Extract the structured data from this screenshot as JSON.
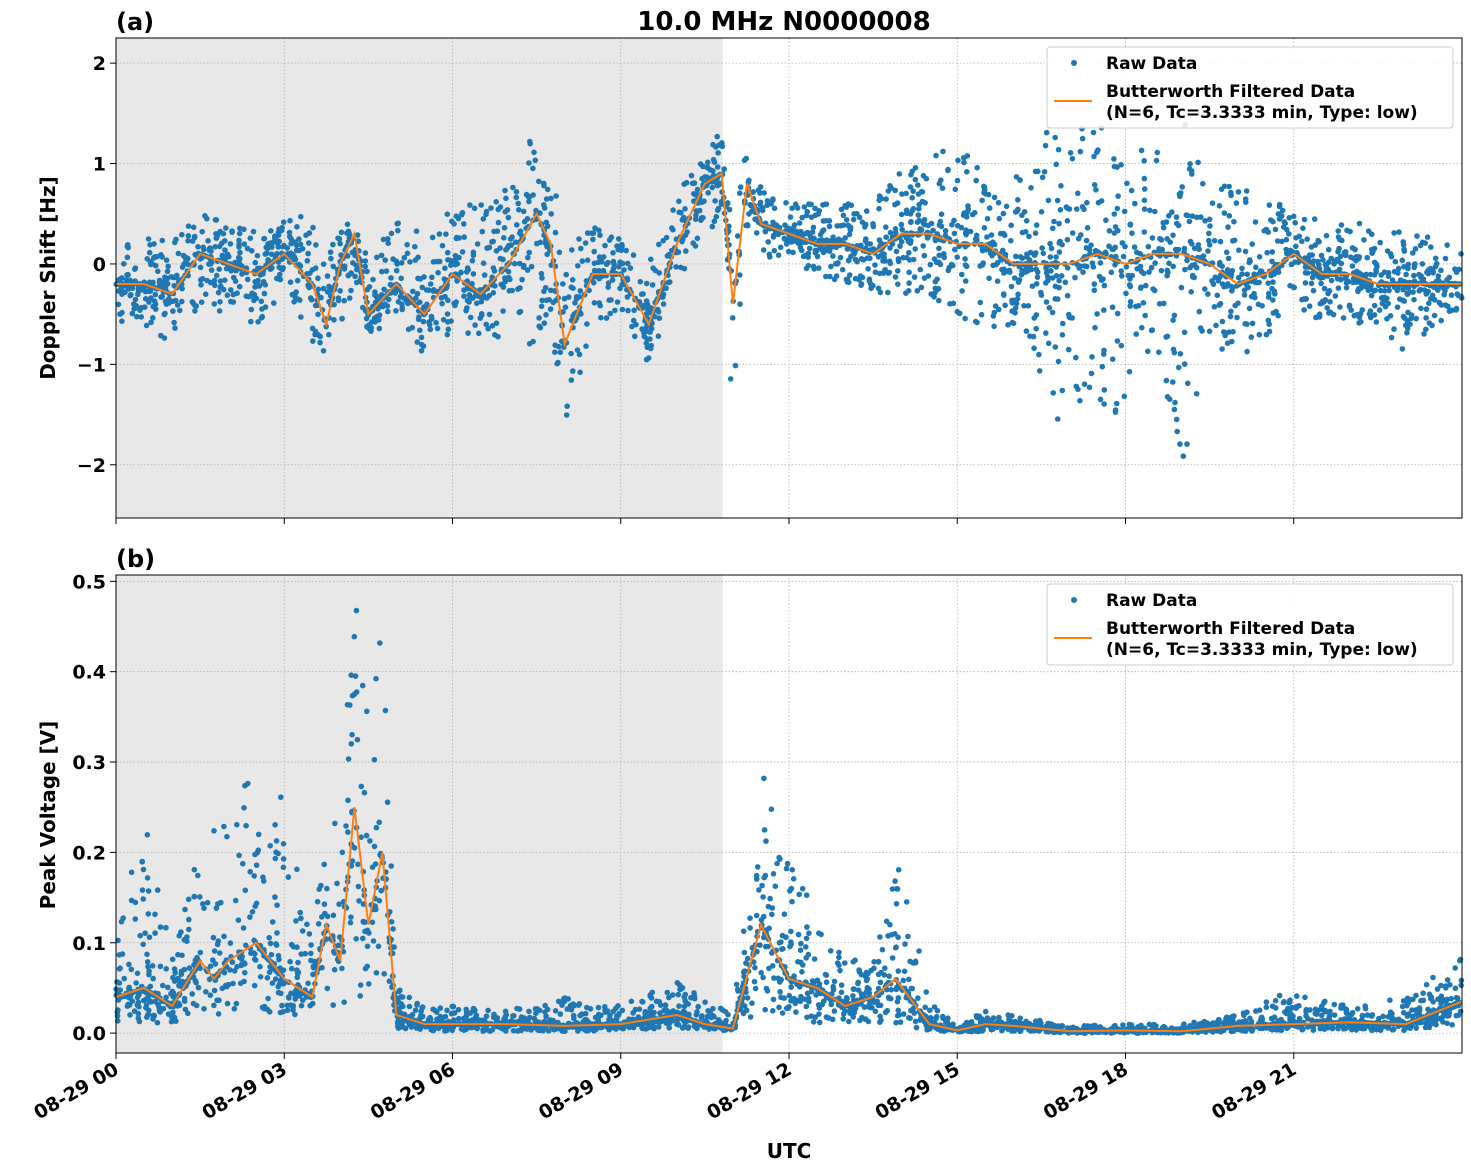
{
  "title": "10.0 MHz N0000008",
  "x_label": "UTC",
  "x_ticks": [
    "08-29 00",
    "08-29 03",
    "08-29 06",
    "08-29 09",
    "08-29 12",
    "08-29 15",
    "08-29 18",
    "08-29 21"
  ],
  "x_range": [
    "08-29 00:00",
    "08-30 00:00"
  ],
  "shaded_span": {
    "start": "08-29 00:00",
    "end": "08-29 10:49",
    "color": "#e8e8e8"
  },
  "colors": {
    "raw": "#1f77b4",
    "filtered": "#ff7f0e"
  },
  "legend": {
    "raw": "Raw Data",
    "filtered_line1": "Butterworth Filtered Data",
    "filtered_line2": "(N=6, Tc=3.3333 min, Type: low)",
    "position": "top-right"
  },
  "chart_data": [
    {
      "type": "scatter+line",
      "panel_label": "(a)",
      "ylabel": "Doppler Shift [Hz]",
      "ylim": [
        -2.53,
        2.25
      ],
      "y_ticks": [
        2,
        1,
        0,
        -1,
        -2
      ],
      "y_tick_labels": [
        "2",
        "1",
        "0",
        "−1",
        "−2"
      ],
      "grid": true,
      "series_columns": [
        "time",
        "filtered",
        "raw_min",
        "raw_max"
      ],
      "points": [
        [
          "08-29 00:00",
          -0.2,
          -0.6,
          0.3
        ],
        [
          "08-29 00:30",
          -0.2,
          -0.6,
          0.3
        ],
        [
          "08-29 01:00",
          -0.3,
          -0.8,
          0.2
        ],
        [
          "08-29 01:30",
          0.1,
          -0.4,
          0.55
        ],
        [
          "08-29 02:00",
          0.0,
          -0.5,
          0.45
        ],
        [
          "08-29 02:30",
          -0.1,
          -0.6,
          0.35
        ],
        [
          "08-29 03:00",
          0.1,
          -0.3,
          0.45
        ],
        [
          "08-29 03:30",
          -0.2,
          -0.8,
          0.5
        ],
        [
          "08-29 03:45",
          -0.6,
          -1.1,
          0.2
        ],
        [
          "08-29 04:00",
          0.0,
          -0.6,
          0.3
        ],
        [
          "08-29 04:15",
          0.3,
          -0.3,
          0.55
        ],
        [
          "08-29 04:30",
          -0.5,
          -0.7,
          0.0
        ],
        [
          "08-29 05:00",
          -0.2,
          -0.6,
          0.5
        ],
        [
          "08-29 05:30",
          -0.5,
          -0.9,
          0.3
        ],
        [
          "08-29 06:00",
          -0.1,
          -0.7,
          0.6
        ],
        [
          "08-29 06:30",
          -0.3,
          -0.7,
          0.6
        ],
        [
          "08-29 07:00",
          0.0,
          -0.9,
          0.8
        ],
        [
          "08-29 07:30",
          0.5,
          -0.8,
          1.6
        ],
        [
          "08-29 07:45",
          0.2,
          -0.6,
          1.2
        ],
        [
          "08-29 08:00",
          -0.8,
          -1.6,
          0.1
        ],
        [
          "08-29 08:30",
          -0.1,
          -0.7,
          0.4
        ],
        [
          "08-29 09:00",
          -0.1,
          -0.5,
          0.3
        ],
        [
          "08-29 09:30",
          -0.6,
          -1.0,
          0.0
        ],
        [
          "08-29 10:00",
          0.2,
          -0.2,
          0.7
        ],
        [
          "08-29 10:30",
          0.8,
          0.3,
          1.2
        ],
        [
          "08-29 10:48",
          0.9,
          0.3,
          1.3
        ],
        [
          "08-29 11:00",
          -0.4,
          -1.7,
          0.3
        ],
        [
          "08-29 11:15",
          0.8,
          0.3,
          1.4
        ],
        [
          "08-29 11:30",
          0.4,
          0.1,
          0.8
        ],
        [
          "08-29 12:00",
          0.3,
          0.0,
          0.6
        ],
        [
          "08-29 12:30",
          0.2,
          -0.1,
          0.6
        ],
        [
          "08-29 13:00",
          0.2,
          -0.2,
          0.6
        ],
        [
          "08-29 13:30",
          0.1,
          -0.3,
          0.6
        ],
        [
          "08-29 14:00",
          0.3,
          -0.3,
          1.0
        ],
        [
          "08-29 14:30",
          0.3,
          -0.3,
          1.1
        ],
        [
          "08-29 15:00",
          0.2,
          -0.5,
          1.2
        ],
        [
          "08-29 15:30",
          0.2,
          -0.7,
          0.9
        ],
        [
          "08-29 16:00",
          0.0,
          -0.6,
          0.8
        ],
        [
          "08-29 16:30",
          0.0,
          -1.2,
          1.4
        ],
        [
          "08-29 17:00",
          0.0,
          -2.0,
          1.4
        ],
        [
          "08-29 17:30",
          0.1,
          -1.3,
          1.4
        ],
        [
          "08-29 18:00",
          0.0,
          -1.8,
          1.1
        ],
        [
          "08-29 18:30",
          0.1,
          -0.7,
          1.2
        ],
        [
          "08-29 19:00",
          0.1,
          -2.3,
          1.5
        ],
        [
          "08-29 19:30",
          0.0,
          -0.9,
          0.7
        ],
        [
          "08-29 20:00",
          -0.2,
          -1.0,
          0.9
        ],
        [
          "08-29 20:30",
          -0.1,
          -0.8,
          0.6
        ],
        [
          "08-29 21:00",
          0.1,
          -0.4,
          0.6
        ],
        [
          "08-29 21:30",
          -0.1,
          -0.6,
          0.4
        ],
        [
          "08-29 22:00",
          -0.1,
          -0.6,
          0.4
        ],
        [
          "08-29 22:30",
          -0.2,
          -0.6,
          0.5
        ],
        [
          "08-29 23:00",
          -0.2,
          -0.9,
          0.3
        ],
        [
          "08-29 23:30",
          -0.2,
          -0.6,
          0.3
        ],
        [
          "08-30 00:00",
          -0.2,
          -0.5,
          0.2
        ]
      ]
    },
    {
      "type": "scatter+line",
      "panel_label": "(b)",
      "ylabel": "Peak Voltage [V]",
      "ylim": [
        -0.022,
        0.507
      ],
      "y_ticks": [
        0.5,
        0.4,
        0.3,
        0.2,
        0.1,
        0.0
      ],
      "y_tick_labels": [
        "0.5",
        "0.4",
        "0.3",
        "0.2",
        "0.1",
        "0.0"
      ],
      "grid": true,
      "series_columns": [
        "time",
        "filtered",
        "raw_min",
        "raw_max"
      ],
      "points": [
        [
          "08-29 00:00",
          0.04,
          0.01,
          0.1
        ],
        [
          "08-29 00:30",
          0.05,
          0.01,
          0.25
        ],
        [
          "08-29 01:00",
          0.03,
          0.01,
          0.1
        ],
        [
          "08-29 01:30",
          0.08,
          0.02,
          0.21
        ],
        [
          "08-29 01:45",
          0.06,
          0.02,
          0.25
        ],
        [
          "08-29 02:00",
          0.08,
          0.02,
          0.25
        ],
        [
          "08-29 02:30",
          0.1,
          0.02,
          0.31
        ],
        [
          "08-29 03:00",
          0.06,
          0.02,
          0.26
        ],
        [
          "08-29 03:30",
          0.04,
          0.02,
          0.1
        ],
        [
          "08-29 03:45",
          0.12,
          0.03,
          0.24
        ],
        [
          "08-29 04:00",
          0.08,
          0.03,
          0.3
        ],
        [
          "08-29 04:15",
          0.25,
          0.03,
          0.48
        ],
        [
          "08-29 04:30",
          0.12,
          0.04,
          0.4
        ],
        [
          "08-29 04:45",
          0.2,
          0.05,
          0.47
        ],
        [
          "08-29 05:00",
          0.02,
          0.005,
          0.05
        ],
        [
          "08-29 05:30",
          0.01,
          0.003,
          0.03
        ],
        [
          "08-29 06:00",
          0.01,
          0.002,
          0.03
        ],
        [
          "08-29 07:00",
          0.01,
          0.002,
          0.025
        ],
        [
          "08-29 08:00",
          0.008,
          0.002,
          0.04
        ],
        [
          "08-29 09:00",
          0.01,
          0.003,
          0.03
        ],
        [
          "08-29 10:00",
          0.02,
          0.005,
          0.06
        ],
        [
          "08-29 10:30",
          0.01,
          0.003,
          0.04
        ],
        [
          "08-29 11:00",
          0.005,
          0.002,
          0.02
        ],
        [
          "08-29 11:30",
          0.12,
          0.02,
          0.29
        ],
        [
          "08-29 12:00",
          0.06,
          0.02,
          0.22
        ],
        [
          "08-29 12:30",
          0.05,
          0.01,
          0.13
        ],
        [
          "08-29 13:00",
          0.03,
          0.01,
          0.08
        ],
        [
          "08-29 13:30",
          0.04,
          0.01,
          0.1
        ],
        [
          "08-29 13:54",
          0.06,
          0.01,
          0.21
        ],
        [
          "08-29 14:30",
          0.01,
          0.003,
          0.04
        ],
        [
          "08-29 15:00",
          0.003,
          0.001,
          0.01
        ],
        [
          "08-29 15:30",
          0.01,
          0.002,
          0.025
        ],
        [
          "08-29 16:00",
          0.008,
          0.002,
          0.02
        ],
        [
          "08-29 17:00",
          0.002,
          0.0,
          0.008
        ],
        [
          "08-29 18:00",
          0.003,
          0.0,
          0.01
        ],
        [
          "08-29 19:00",
          0.002,
          0.0,
          0.01
        ],
        [
          "08-29 20:00",
          0.008,
          0.002,
          0.02
        ],
        [
          "08-29 21:00",
          0.01,
          0.003,
          0.05
        ],
        [
          "08-29 22:00",
          0.012,
          0.003,
          0.03
        ],
        [
          "08-29 23:00",
          0.01,
          0.003,
          0.04
        ],
        [
          "08-30 00:00",
          0.035,
          0.01,
          0.085
        ]
      ]
    }
  ]
}
